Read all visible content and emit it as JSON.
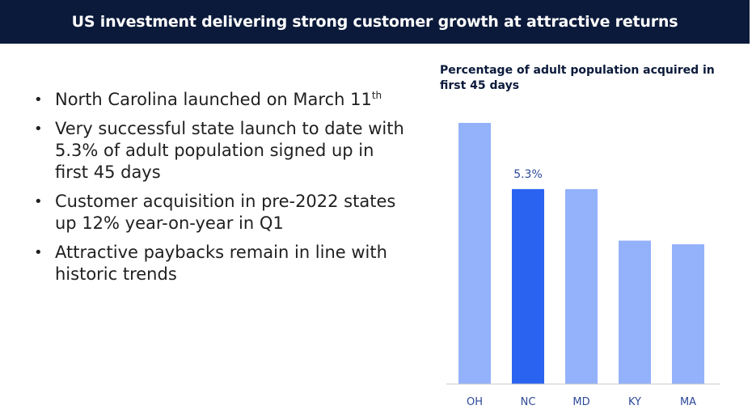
{
  "header": {
    "title": "US investment delivering strong customer growth at attractive returns"
  },
  "bullets": [
    {
      "text": "North Carolina launched on March 11",
      "sup": "th"
    },
    {
      "text": "Very successful state launch to date with 5.3% of adult population signed up in first 45 days"
    },
    {
      "text": "Customer acquisition in pre-2022 states up 12% year-on-year in Q1"
    },
    {
      "text": "Attractive paybacks remain in line with historic trends"
    }
  ],
  "bullet_marker": "•",
  "colors": {
    "header_bg": "#0b1a3b",
    "bar_default": "#93b2fb",
    "bar_highlight": "#2a63f0",
    "axis_text": "#2d4a9a"
  },
  "chart_data": {
    "type": "bar",
    "title": "Percentage of adult population acquired in first 45 days",
    "categories": [
      "OH",
      "NC",
      "MD",
      "KY",
      "MA"
    ],
    "values": [
      7.1,
      5.3,
      5.3,
      3.9,
      3.8
    ],
    "highlight": "NC",
    "data_labels": [
      {
        "category": "NC",
        "text": "5.3%"
      }
    ],
    "xlabel": "",
    "ylabel": "",
    "ylim": [
      0,
      7.1
    ],
    "grid": false,
    "legend": "none"
  }
}
